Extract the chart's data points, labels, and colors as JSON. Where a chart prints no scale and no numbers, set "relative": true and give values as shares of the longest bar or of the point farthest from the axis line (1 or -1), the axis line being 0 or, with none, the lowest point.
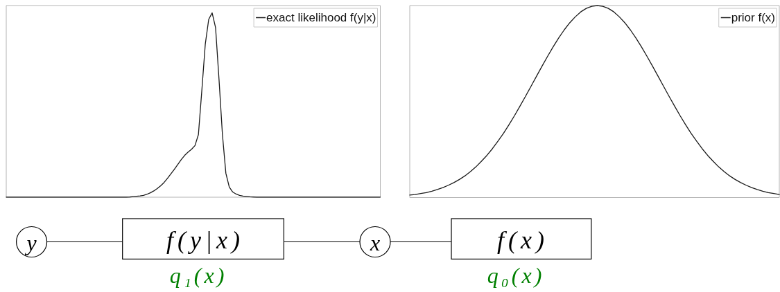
{
  "chart_data": [
    {
      "type": "line",
      "relative": true,
      "legend": "top right",
      "tick_labels": false,
      "marker": "none",
      "categories": [
        null,
        null,
        null,
        null,
        null,
        null,
        null,
        null,
        null,
        null,
        null,
        null,
        null,
        null,
        null,
        null,
        null,
        null,
        null,
        null,
        null,
        null,
        null,
        null,
        null,
        null,
        null,
        null,
        null,
        null,
        null,
        null,
        null,
        null,
        null,
        null,
        null,
        null,
        null,
        null,
        null,
        null,
        null,
        null,
        null,
        null,
        null,
        null,
        null,
        null,
        null,
        null,
        null,
        null,
        null,
        null,
        null,
        null,
        null,
        null,
        null,
        null,
        null,
        null,
        null,
        null,
        null,
        null,
        null,
        null,
        null,
        null,
        null,
        null,
        null,
        null,
        null,
        null,
        null,
        null,
        null,
        null,
        null,
        null,
        null,
        null,
        null,
        null,
        null,
        null,
        null,
        null,
        null,
        null,
        null,
        null,
        null,
        null,
        null,
        null,
        null,
        null,
        null,
        null,
        null,
        null,
        null,
        null,
        null,
        null
      ],
      "series": [
        {
          "name": "exact likelihood f(y|x)",
          "color": "#1a1a1a",
          "values": [
            0,
            0,
            0,
            0,
            0,
            0,
            0,
            0,
            0,
            0,
            0,
            0,
            0,
            0,
            0,
            0,
            0,
            0,
            0,
            0,
            0,
            0,
            0,
            0,
            0,
            0,
            0,
            0,
            0,
            0,
            0,
            0,
            0,
            0,
            0,
            0,
            0.001,
            0.003,
            0.005,
            0.007,
            0.01,
            0.016,
            0.024,
            0.034,
            0.047,
            0.062,
            0.08,
            0.103,
            0.127,
            0.152,
            0.178,
            0.204,
            0.227,
            0.245,
            0.26,
            0.28,
            0.34,
            0.58,
            0.83,
            0.965,
            1,
            0.92,
            0.64,
            0.34,
            0.13,
            0.055,
            0.028,
            0.017,
            0.01,
            0.006,
            0.004,
            0.002,
            0.001,
            0,
            0,
            0,
            0,
            0,
            0,
            0,
            0,
            0,
            0,
            0,
            0,
            0,
            0,
            0,
            0,
            0,
            0,
            0,
            0,
            0,
            0,
            0,
            0,
            0,
            0,
            0,
            0,
            0,
            0,
            0,
            0,
            0,
            0,
            0,
            0,
            0
          ]
        }
      ]
    },
    {
      "type": "line",
      "relative": true,
      "legend": "top right",
      "tick_labels": false,
      "marker": "none",
      "categories": [
        null,
        null,
        null,
        null,
        null,
        null,
        null,
        null,
        null,
        null,
        null,
        null,
        null,
        null,
        null,
        null,
        null,
        null,
        null,
        null,
        null,
        null,
        null,
        null,
        null,
        null,
        null,
        null,
        null,
        null,
        null,
        null,
        null,
        null,
        null,
        null,
        null,
        null,
        null,
        null,
        null,
        null,
        null,
        null,
        null,
        null,
        null,
        null,
        null,
        null,
        null,
        null,
        null,
        null,
        null,
        null,
        null,
        null,
        null,
        null,
        null,
        null,
        null,
        null,
        null,
        null,
        null,
        null
      ],
      "series": [
        {
          "name": "prior f(x)",
          "color": "#1a1a1a",
          "values": [
            0.013,
            0.016,
            0.021,
            0.026,
            0.033,
            0.042,
            0.052,
            0.064,
            0.078,
            0.094,
            0.113,
            0.135,
            0.16,
            0.189,
            0.22,
            0.255,
            0.294,
            0.335,
            0.38,
            0.427,
            0.477,
            0.528,
            0.58,
            0.633,
            0.685,
            0.736,
            0.785,
            0.831,
            0.873,
            0.91,
            0.941,
            0.967,
            0.985,
            0.996,
            1,
            0.996,
            0.985,
            0.967,
            0.941,
            0.91,
            0.873,
            0.831,
            0.785,
            0.736,
            0.685,
            0.633,
            0.58,
            0.528,
            0.477,
            0.427,
            0.38,
            0.335,
            0.294,
            0.255,
            0.22,
            0.189,
            0.16,
            0.135,
            0.113,
            0.094,
            0.078,
            0.064,
            0.052,
            0.042,
            0.033,
            0.026,
            0.021,
            0.016
          ]
        }
      ]
    },
    {
      "type": "other",
      "annotations": [
        "y",
        "f(y|x)",
        "x",
        "f(x)",
        "q₁(x)",
        "q₀(x)"
      ]
    }
  ]
}
